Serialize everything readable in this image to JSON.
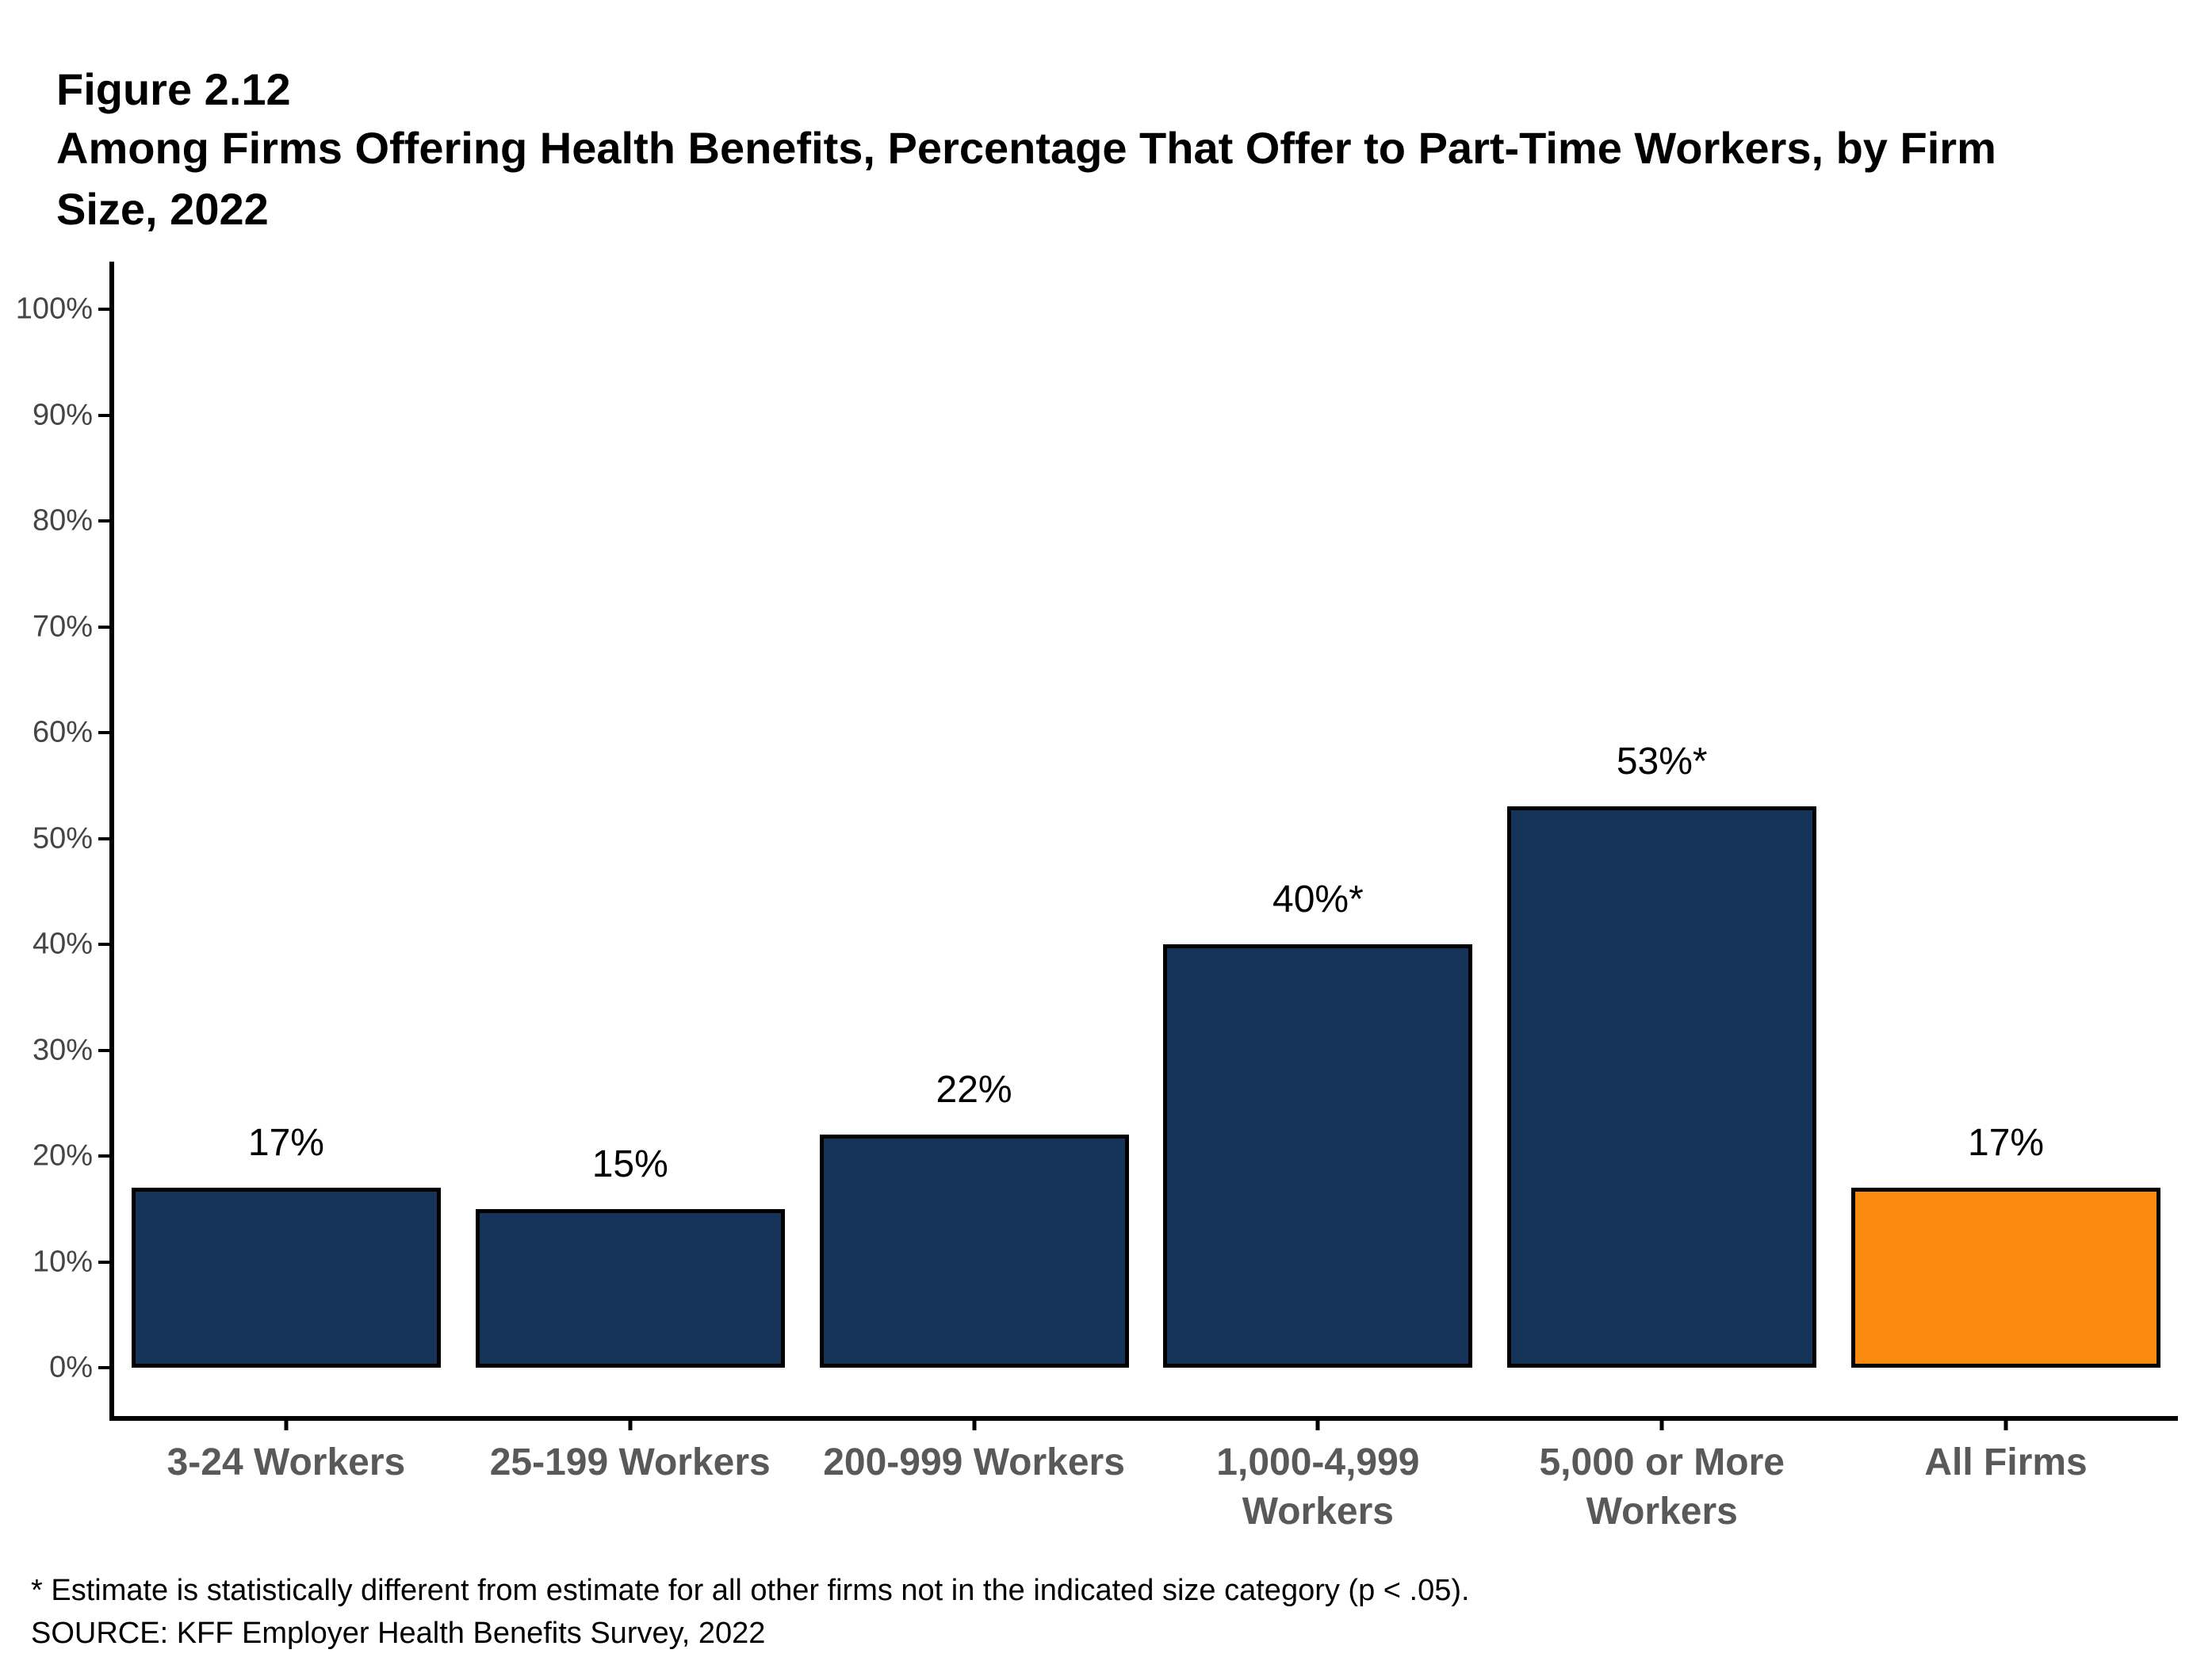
{
  "header": {
    "figure_label": "Figure 2.12",
    "title_lines": [
      "Among Firms Offering Health Benefits, Percentage That Offer to Part-Time Workers, by Firm",
      "Size, 2022"
    ]
  },
  "chart_data": {
    "type": "bar",
    "title": "Among Firms Offering Health Benefits, Percentage That Offer to Part-Time Workers, by Firm Size, 2022",
    "categories": [
      "3-24 Workers",
      "25-199 Workers",
      "200-999 Workers",
      "1,000-4,999\nWorkers",
      "5,000 or More\nWorkers",
      "All Firms"
    ],
    "values": [
      17,
      15,
      22,
      40,
      53,
      17
    ],
    "value_labels": [
      "17%",
      "15%",
      "22%",
      "40%*",
      "53%*",
      "17%"
    ],
    "statistically_significant": [
      false,
      false,
      false,
      true,
      true,
      false
    ],
    "y_ticks": [
      "0%",
      "10%",
      "20%",
      "30%",
      "40%",
      "50%",
      "60%",
      "70%",
      "80%",
      "90%",
      "100%"
    ],
    "ylim": [
      0,
      100
    ],
    "xlabel": "",
    "ylabel": "",
    "grid": false,
    "legend": false,
    "bar_colors": [
      "#16345A",
      "#16345A",
      "#16345A",
      "#16345A",
      "#16345A",
      "#FB8A11"
    ],
    "colors": {
      "navy": "#16345A",
      "orange": "#FB8A11",
      "axis": "#000000",
      "y_tick_label": "#454545",
      "category_label": "#595959",
      "value_label": "#000000"
    }
  },
  "footnotes": {
    "significance_note": "* Estimate is statistically different from estimate for all other firms not in the indicated size category (p < .05).",
    "source": "SOURCE: KFF Employer Health Benefits Survey, 2022"
  }
}
